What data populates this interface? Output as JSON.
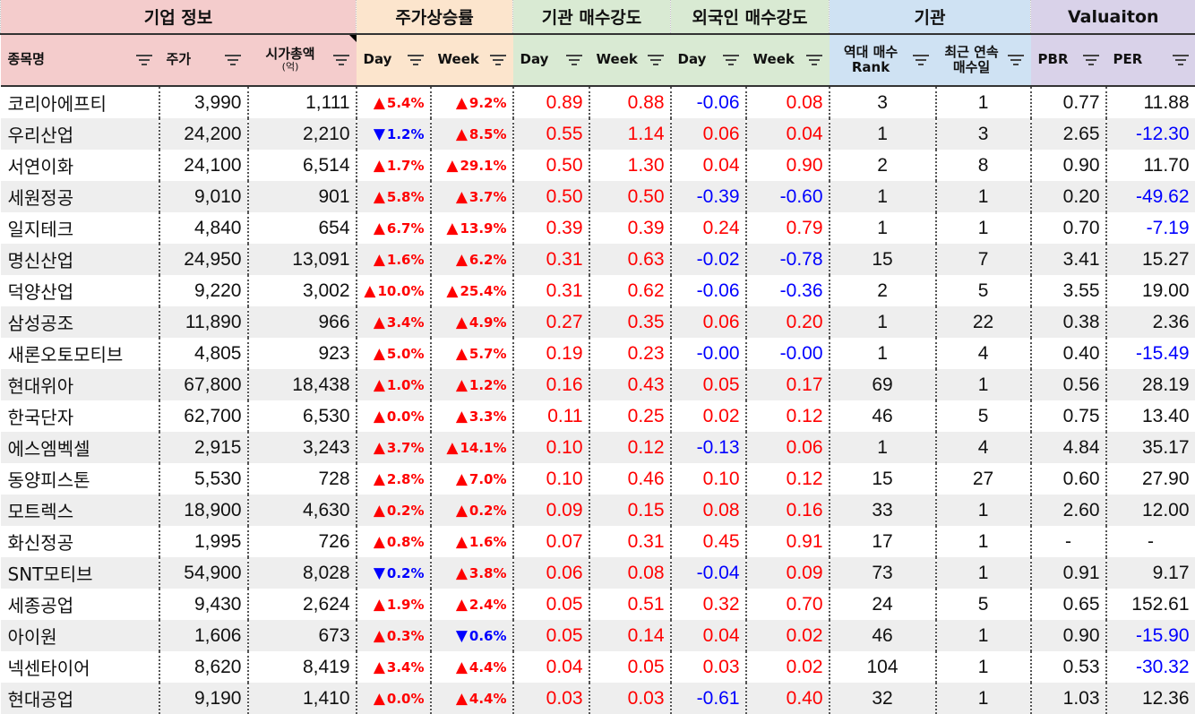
{
  "groups": [
    {
      "label": "기업 정보",
      "span": 3,
      "color": "#f4cccc"
    },
    {
      "label": "주가상승률",
      "span": 2,
      "color": "#fce5cd"
    },
    {
      "label": "기관 매수강도",
      "span": 2,
      "color": "#d9ead3"
    },
    {
      "label": "외국인 매수강도",
      "span": 2,
      "color": "#d9ead3"
    },
    {
      "label": "기관",
      "span": 2,
      "color": "#cfe2f3"
    },
    {
      "label": "Valuaiton",
      "span": 2,
      "color": "#d9d2e9"
    }
  ],
  "columns": [
    {
      "label": "종목명",
      "sub": ""
    },
    {
      "label": "주가",
      "sub": ""
    },
    {
      "label": "시가총액",
      "sub": "(억)"
    },
    {
      "label": "Day",
      "sub": ""
    },
    {
      "label": "Week",
      "sub": ""
    },
    {
      "label": "Day",
      "sub": ""
    },
    {
      "label": "Week",
      "sub": ""
    },
    {
      "label": "Day",
      "sub": ""
    },
    {
      "label": "Week",
      "sub": ""
    },
    {
      "label": "역대 매수",
      "sub": "Rank"
    },
    {
      "label": "최근 연속",
      "sub": "매수일"
    },
    {
      "label": "PBR",
      "sub": ""
    },
    {
      "label": "PER",
      "sub": ""
    }
  ],
  "colors": {
    "positive": "#ff0000",
    "negative": "#0000ff"
  },
  "arrows": {
    "up": "▲",
    "down": "▼"
  },
  "rows": [
    {
      "name": "코리아에프티",
      "price": "3,990",
      "cap": "1,111",
      "day": {
        "dir": "up",
        "v": "5.4%"
      },
      "week": {
        "dir": "up",
        "v": "9.2%"
      },
      "inst_day": "0.89",
      "inst_week": "0.88",
      "frgn_day": "-0.06",
      "frgn_week": "0.08",
      "rank": "3",
      "streak": "1",
      "pbr": "0.77",
      "per": "11.88"
    },
    {
      "name": "우리산업",
      "price": "24,200",
      "cap": "2,210",
      "day": {
        "dir": "down",
        "v": "1.2%"
      },
      "week": {
        "dir": "up",
        "v": "8.5%"
      },
      "inst_day": "0.55",
      "inst_week": "1.14",
      "frgn_day": "0.06",
      "frgn_week": "0.04",
      "rank": "1",
      "streak": "3",
      "pbr": "2.65",
      "per": "-12.30"
    },
    {
      "name": "서연이화",
      "price": "24,100",
      "cap": "6,514",
      "day": {
        "dir": "up",
        "v": "1.7%"
      },
      "week": {
        "dir": "up",
        "v": "29.1%"
      },
      "inst_day": "0.50",
      "inst_week": "1.30",
      "frgn_day": "0.04",
      "frgn_week": "0.90",
      "rank": "2",
      "streak": "8",
      "pbr": "0.90",
      "per": "11.70"
    },
    {
      "name": "세원정공",
      "price": "9,010",
      "cap": "901",
      "day": {
        "dir": "up",
        "v": "5.8%"
      },
      "week": {
        "dir": "up",
        "v": "3.7%"
      },
      "inst_day": "0.50",
      "inst_week": "0.50",
      "frgn_day": "-0.39",
      "frgn_week": "-0.60",
      "rank": "1",
      "streak": "1",
      "pbr": "0.20",
      "per": "-49.62"
    },
    {
      "name": "일지테크",
      "price": "4,840",
      "cap": "654",
      "day": {
        "dir": "up",
        "v": "6.7%"
      },
      "week": {
        "dir": "up",
        "v": "13.9%"
      },
      "inst_day": "0.39",
      "inst_week": "0.39",
      "frgn_day": "0.24",
      "frgn_week": "0.79",
      "rank": "1",
      "streak": "1",
      "pbr": "0.70",
      "per": "-7.19"
    },
    {
      "name": "명신산업",
      "price": "24,950",
      "cap": "13,091",
      "day": {
        "dir": "up",
        "v": "1.6%"
      },
      "week": {
        "dir": "up",
        "v": "6.2%"
      },
      "inst_day": "0.31",
      "inst_week": "0.63",
      "frgn_day": "-0.02",
      "frgn_week": "-0.78",
      "rank": "15",
      "streak": "7",
      "pbr": "3.41",
      "per": "15.27"
    },
    {
      "name": "덕양산업",
      "price": "9,220",
      "cap": "3,002",
      "day": {
        "dir": "up",
        "v": "10.0%"
      },
      "week": {
        "dir": "up",
        "v": "25.4%"
      },
      "inst_day": "0.31",
      "inst_week": "0.62",
      "frgn_day": "-0.06",
      "frgn_week": "-0.36",
      "rank": "2",
      "streak": "5",
      "pbr": "3.55",
      "per": "19.00"
    },
    {
      "name": "삼성공조",
      "price": "11,890",
      "cap": "966",
      "day": {
        "dir": "up",
        "v": "3.4%"
      },
      "week": {
        "dir": "up",
        "v": "4.9%"
      },
      "inst_day": "0.27",
      "inst_week": "0.35",
      "frgn_day": "0.06",
      "frgn_week": "0.20",
      "rank": "1",
      "streak": "22",
      "pbr": "0.38",
      "per": "2.36"
    },
    {
      "name": "새론오토모티브",
      "price": "4,805",
      "cap": "923",
      "day": {
        "dir": "up",
        "v": "5.0%"
      },
      "week": {
        "dir": "up",
        "v": "5.7%"
      },
      "inst_day": "0.19",
      "inst_week": "0.23",
      "frgn_day": "-0.00",
      "frgn_week": "-0.00",
      "rank": "1",
      "streak": "4",
      "pbr": "0.40",
      "per": "-15.49"
    },
    {
      "name": "현대위아",
      "price": "67,800",
      "cap": "18,438",
      "day": {
        "dir": "up",
        "v": "1.0%"
      },
      "week": {
        "dir": "up",
        "v": "1.2%"
      },
      "inst_day": "0.16",
      "inst_week": "0.43",
      "frgn_day": "0.05",
      "frgn_week": "0.17",
      "rank": "69",
      "streak": "1",
      "pbr": "0.56",
      "per": "28.19"
    },
    {
      "name": "한국단자",
      "price": "62,700",
      "cap": "6,530",
      "day": {
        "dir": "up",
        "v": "0.0%"
      },
      "week": {
        "dir": "up",
        "v": "3.3%"
      },
      "inst_day": "0.11",
      "inst_week": "0.25",
      "frgn_day": "0.02",
      "frgn_week": "0.12",
      "rank": "46",
      "streak": "5",
      "pbr": "0.75",
      "per": "13.40"
    },
    {
      "name": "에스엠벡셀",
      "price": "2,915",
      "cap": "3,243",
      "day": {
        "dir": "up",
        "v": "3.7%"
      },
      "week": {
        "dir": "up",
        "v": "14.1%"
      },
      "inst_day": "0.10",
      "inst_week": "0.12",
      "frgn_day": "-0.13",
      "frgn_week": "0.06",
      "rank": "1",
      "streak": "4",
      "pbr": "4.84",
      "per": "35.17"
    },
    {
      "name": "동양피스톤",
      "price": "5,530",
      "cap": "728",
      "day": {
        "dir": "up",
        "v": "2.8%"
      },
      "week": {
        "dir": "up",
        "v": "7.0%"
      },
      "inst_day": "0.10",
      "inst_week": "0.46",
      "frgn_day": "0.10",
      "frgn_week": "0.12",
      "rank": "15",
      "streak": "27",
      "pbr": "0.60",
      "per": "27.90"
    },
    {
      "name": "모트렉스",
      "price": "18,900",
      "cap": "4,630",
      "day": {
        "dir": "up",
        "v": "0.2%"
      },
      "week": {
        "dir": "up",
        "v": "0.2%"
      },
      "inst_day": "0.09",
      "inst_week": "0.15",
      "frgn_day": "0.08",
      "frgn_week": "0.16",
      "rank": "33",
      "streak": "1",
      "pbr": "2.60",
      "per": "12.00"
    },
    {
      "name": "화신정공",
      "price": "1,995",
      "cap": "726",
      "day": {
        "dir": "up",
        "v": "0.8%"
      },
      "week": {
        "dir": "up",
        "v": "1.6%"
      },
      "inst_day": "0.07",
      "inst_week": "0.31",
      "frgn_day": "0.45",
      "frgn_week": "0.91",
      "rank": "17",
      "streak": "1",
      "pbr": "-",
      "per": "-"
    },
    {
      "name": "SNT모티브",
      "price": "54,900",
      "cap": "8,028",
      "day": {
        "dir": "down",
        "v": "0.2%"
      },
      "week": {
        "dir": "up",
        "v": "3.8%"
      },
      "inst_day": "0.06",
      "inst_week": "0.08",
      "frgn_day": "-0.04",
      "frgn_week": "0.09",
      "rank": "73",
      "streak": "1",
      "pbr": "0.91",
      "per": "9.17"
    },
    {
      "name": "세종공업",
      "price": "9,430",
      "cap": "2,624",
      "day": {
        "dir": "up",
        "v": "1.9%"
      },
      "week": {
        "dir": "up",
        "v": "2.4%"
      },
      "inst_day": "0.05",
      "inst_week": "0.51",
      "frgn_day": "0.32",
      "frgn_week": "0.70",
      "rank": "24",
      "streak": "5",
      "pbr": "0.65",
      "per": "152.61"
    },
    {
      "name": "아이원",
      "price": "1,606",
      "cap": "673",
      "day": {
        "dir": "up",
        "v": "0.3%"
      },
      "week": {
        "dir": "down",
        "v": "0.6%"
      },
      "inst_day": "0.05",
      "inst_week": "0.14",
      "frgn_day": "0.04",
      "frgn_week": "0.02",
      "rank": "46",
      "streak": "1",
      "pbr": "0.90",
      "per": "-15.90"
    },
    {
      "name": "넥센타이어",
      "price": "8,620",
      "cap": "8,419",
      "day": {
        "dir": "up",
        "v": "3.4%"
      },
      "week": {
        "dir": "up",
        "v": "4.4%"
      },
      "inst_day": "0.04",
      "inst_week": "0.05",
      "frgn_day": "0.03",
      "frgn_week": "0.02",
      "rank": "104",
      "streak": "1",
      "pbr": "0.53",
      "per": "-30.32"
    },
    {
      "name": "현대공업",
      "price": "9,190",
      "cap": "1,410",
      "day": {
        "dir": "up",
        "v": "0.0%"
      },
      "week": {
        "dir": "up",
        "v": "4.4%"
      },
      "inst_day": "0.03",
      "inst_week": "0.03",
      "frgn_day": "-0.61",
      "frgn_week": "0.40",
      "rank": "32",
      "streak": "1",
      "pbr": "1.03",
      "per": "12.36"
    }
  ]
}
